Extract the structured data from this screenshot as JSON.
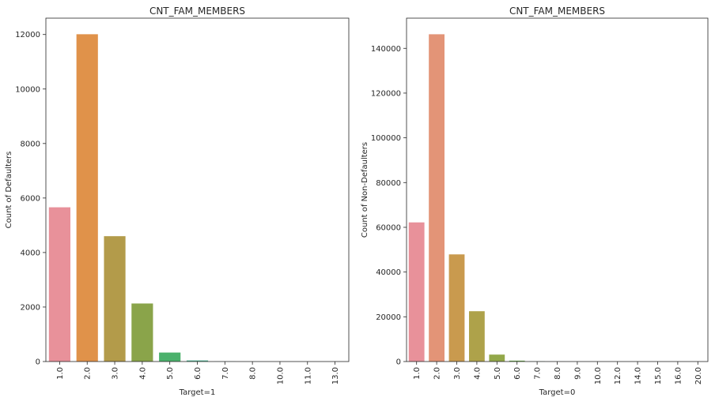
{
  "chart_data": [
    {
      "type": "bar",
      "title": "CNT_FAM_MEMBERS",
      "xlabel": "Target=1",
      "ylabel": "Count of Defaulters",
      "ylim": [
        0,
        12600
      ],
      "yticks": [
        0,
        2000,
        4000,
        6000,
        8000,
        10000,
        12000
      ],
      "categories": [
        "1.0",
        "2.0",
        "3.0",
        "4.0",
        "5.0",
        "6.0",
        "7.0",
        "8.0",
        "10.0",
        "11.0",
        "13.0"
      ],
      "values": [
        5660,
        12010,
        4600,
        2130,
        330,
        40,
        3,
        1,
        1,
        1,
        1
      ],
      "colors": [
        "#e8919a",
        "#e0924a",
        "#b39b4a",
        "#8aa44a",
        "#4bb16c",
        "#4bae8e",
        "#4ca9a6",
        "#4fa4c0",
        "#7a95d8",
        "#b58be0",
        "#e088cf"
      ],
      "grid": false
    },
    {
      "type": "bar",
      "title": "CNT_FAM_MEMBERS",
      "xlabel": "Target=0",
      "ylabel": "Count of Non-Defaulters",
      "ylim": [
        0,
        153500
      ],
      "yticks": [
        0,
        20000,
        40000,
        60000,
        80000,
        100000,
        120000,
        140000
      ],
      "categories": [
        "1.0",
        "2.0",
        "3.0",
        "4.0",
        "5.0",
        "6.0",
        "7.0",
        "8.0",
        "9.0",
        "10.0",
        "12.0",
        "14.0",
        "15.0",
        "16.0",
        "20.0"
      ],
      "values": [
        62200,
        146300,
        47900,
        22500,
        3100,
        400,
        80,
        20,
        6,
        3,
        2,
        2,
        1,
        2,
        2
      ],
      "colors": [
        "#e8919a",
        "#e39477",
        "#c99a4e",
        "#aea24a",
        "#93a84a",
        "#6cb04c",
        "#4db16d",
        "#4bae8e",
        "#4ca9a6",
        "#4fa4c0",
        "#6d99d8",
        "#9990e0",
        "#c189de",
        "#e088cf",
        "#e48bb6"
      ],
      "grid": false
    }
  ]
}
